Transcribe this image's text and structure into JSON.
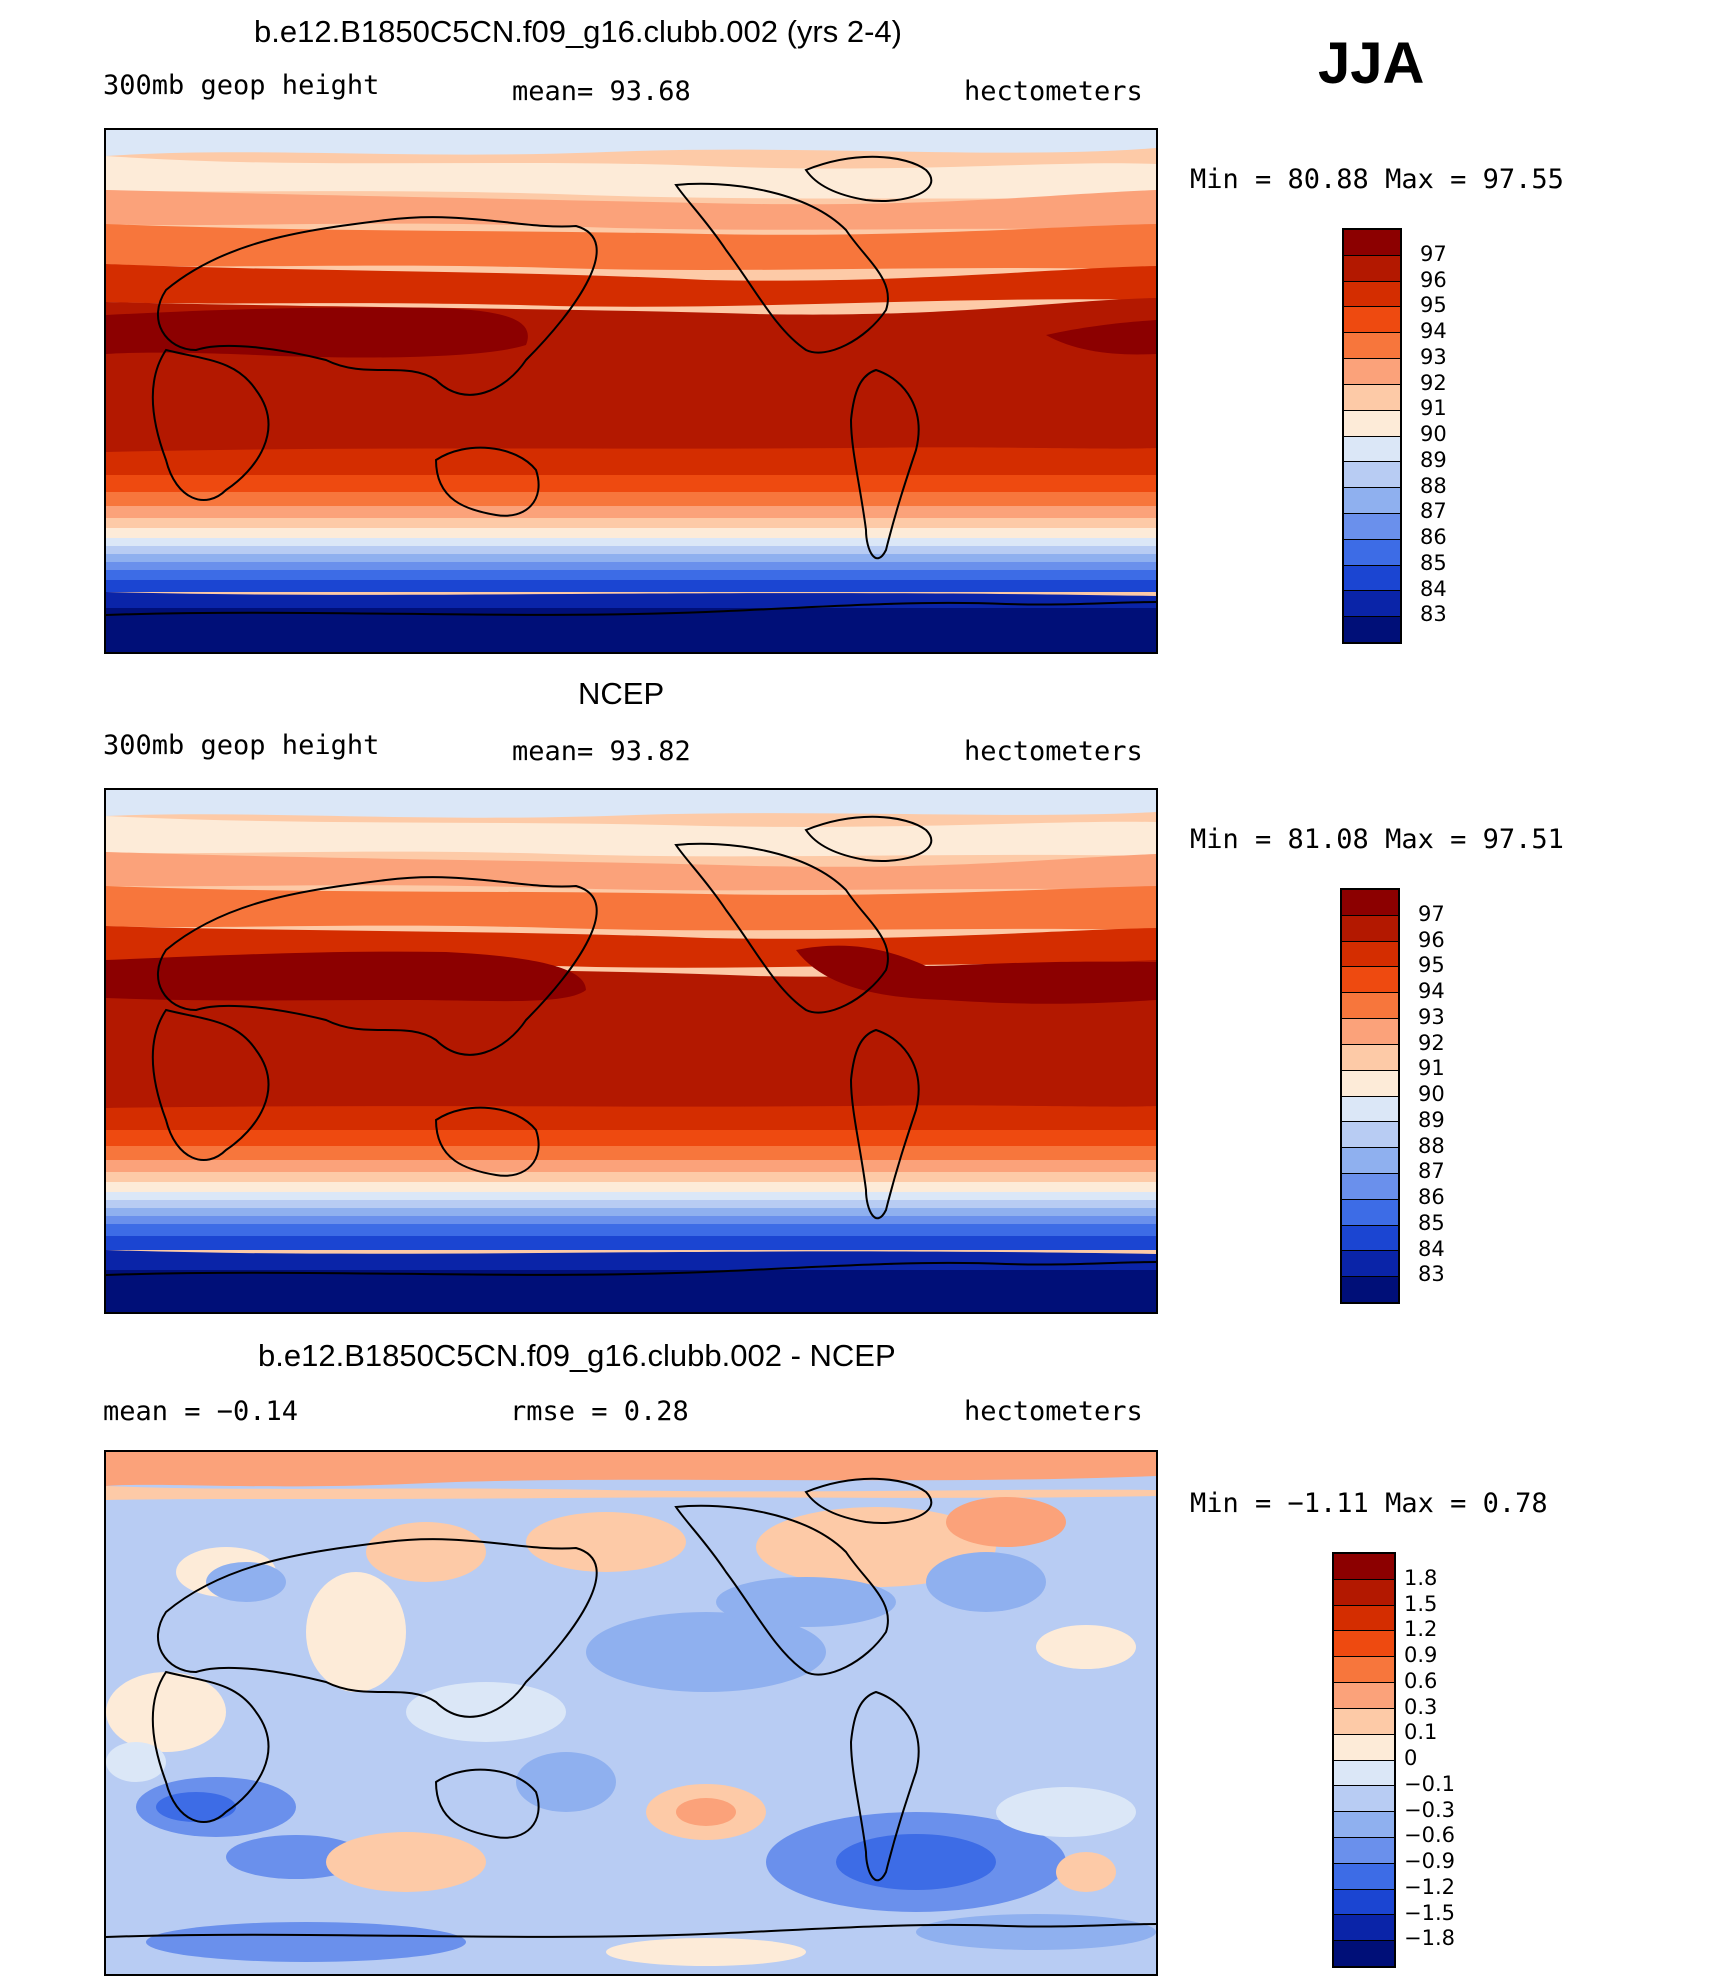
{
  "season": "JJA",
  "panels": [
    {
      "id": "model",
      "title": "b.e12.B1850C5CN.f09_g16.clubb.002 (yrs 2-4)",
      "left_label": "300mb  geop height",
      "mid_label": "mean=   93.68",
      "right_label": "hectometers",
      "minmax": "Min  =    80.88  Max  =    97.55"
    },
    {
      "id": "obs",
      "title": "NCEP",
      "left_label": "300mb  geop height",
      "mid_label": "mean=   93.82",
      "right_label": "hectometers",
      "minmax": "Min  =    81.08  Max  =    97.51"
    },
    {
      "id": "diff",
      "title": "b.e12.B1850C5CN.f09_g16.clubb.002 - NCEP",
      "left_label": "mean  =   −0.14",
      "mid_label": "rmse  =     0.28",
      "right_label": "hectometers",
      "minmax": "Min  =   −1.11  Max  =      0.78"
    }
  ],
  "colorbar_height": {
    "levels": [
      "97",
      "96",
      "95",
      "94",
      "93",
      "92",
      "91",
      "90",
      "89",
      "88",
      "87",
      "86",
      "85",
      "84",
      "83"
    ],
    "colors": [
      "#8c0000",
      "#b31800",
      "#d42d00",
      "#ee4a10",
      "#f7763c",
      "#fba27a",
      "#fdcaa7",
      "#fdebd8",
      "#dbe7f7",
      "#b8ccf3",
      "#8fb0ef",
      "#6a90ec",
      "#3d6ce6",
      "#1b45d2",
      "#0a24a8",
      "#000f78"
    ]
  },
  "colorbar_diff": {
    "levels": [
      "1.8",
      "1.5",
      "1.2",
      "0.9",
      "0.6",
      "0.3",
      "0.1",
      "0",
      "−0.1",
      "−0.3",
      "−0.6",
      "−0.9",
      "−1.2",
      "−1.5",
      "−1.8"
    ],
    "colors": [
      "#8c0000",
      "#b31800",
      "#d42d00",
      "#ee4a10",
      "#f7763c",
      "#fba27a",
      "#fdcaa7",
      "#fdebd8",
      "#dbe7f7",
      "#b8ccf3",
      "#8fb0ef",
      "#6a90ec",
      "#3d6ce6",
      "#1b45d2",
      "#0a24a8",
      "#000f78"
    ]
  }
}
